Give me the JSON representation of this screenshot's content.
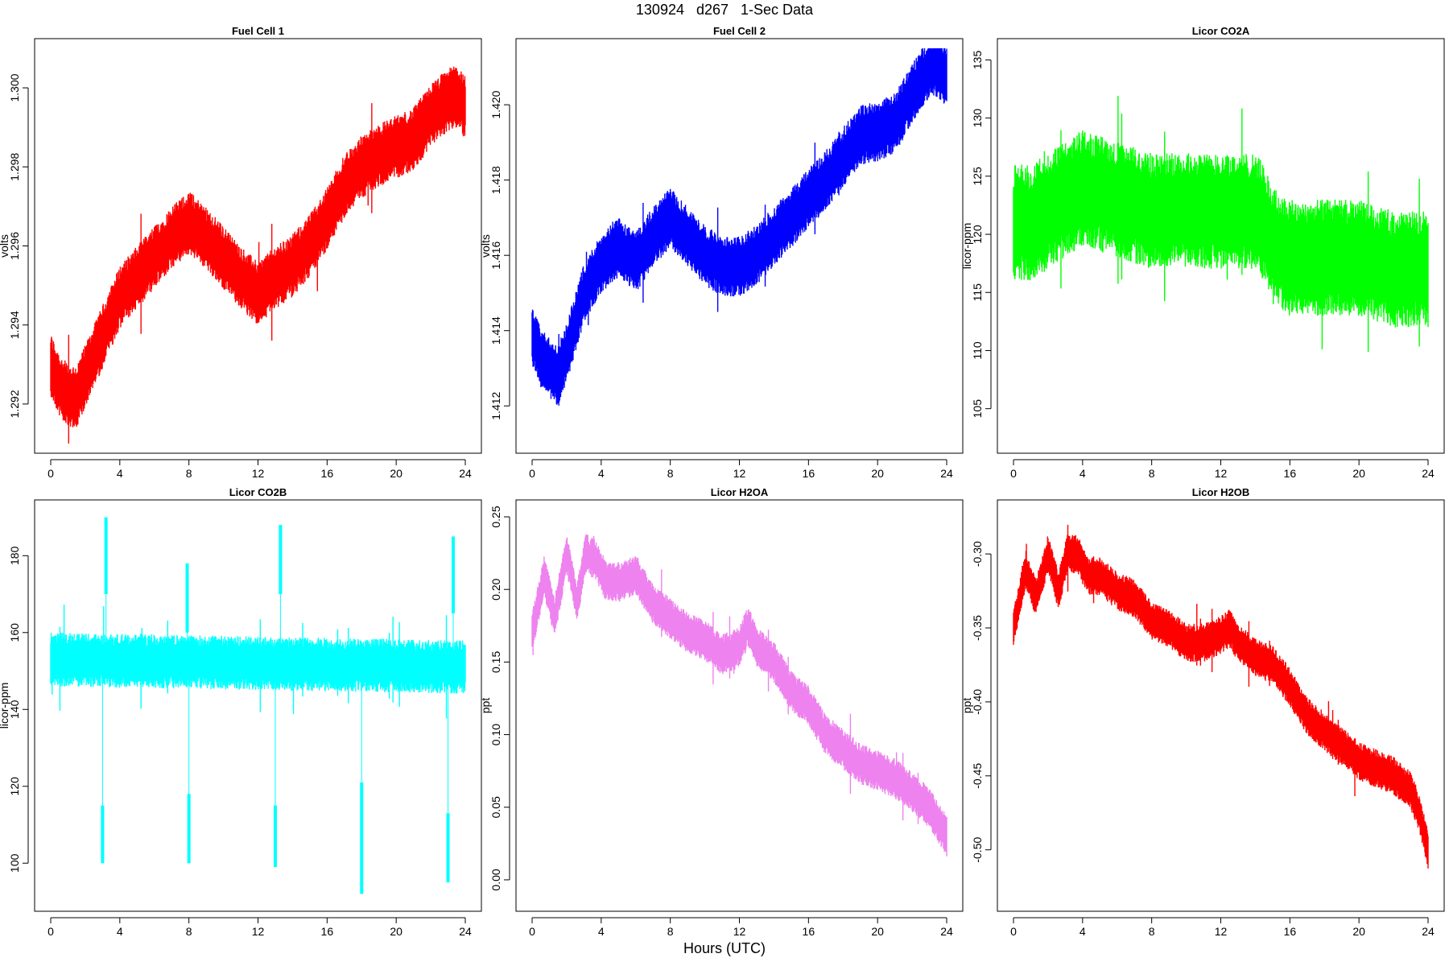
{
  "page": {
    "title": "130924   d267   1-Sec Data",
    "xlabel": "Hours (UTC)"
  },
  "chart_data": [
    {
      "type": "line",
      "title": "Fuel Cell 1",
      "ylabel": "volts",
      "color": "#ff0000",
      "xlim": [
        0,
        24
      ],
      "ylim": [
        1.291,
        1.301
      ],
      "xticks": [
        0,
        4,
        8,
        12,
        16,
        20,
        24
      ],
      "yticks": [
        "1.292",
        "1.294",
        "1.296",
        "1.298",
        "1.300"
      ],
      "band_half_width": 0.0008,
      "series": [
        {
          "x": [
            0,
            0.5,
            1,
            1.5,
            2,
            3,
            4,
            5,
            6,
            7,
            8,
            9,
            10,
            11,
            12,
            13,
            14,
            15,
            16,
            17,
            18,
            19,
            20,
            21,
            22,
            23,
            23.5,
            24
          ],
          "values": [
            1.293,
            1.2925,
            1.2922,
            1.2922,
            1.2927,
            1.2937,
            1.2947,
            1.2952,
            1.2957,
            1.2962,
            1.2966,
            1.2962,
            1.2957,
            1.2952,
            1.2948,
            1.2952,
            1.2955,
            1.296,
            1.2967,
            1.2975,
            1.298,
            1.2983,
            1.2985,
            1.2987,
            1.2993,
            1.2997,
            1.2998,
            1.2995
          ]
        }
      ]
    },
    {
      "type": "line",
      "title": "Fuel Cell 2",
      "ylabel": "volts",
      "color": "#0000ff",
      "xlim": [
        0,
        24
      ],
      "ylim": [
        1.411,
        1.4215
      ],
      "xticks": [
        0,
        4,
        8,
        12,
        16,
        20,
        24
      ],
      "yticks": [
        "1.412",
        "1.414",
        "1.416",
        "1.418",
        "1.420"
      ],
      "band_half_width": 0.0008,
      "series": [
        {
          "x": [
            0,
            0.5,
            1,
            1.5,
            2,
            3,
            4,
            5,
            6,
            7,
            8,
            9,
            10,
            11,
            12,
            13,
            14,
            15,
            16,
            17,
            18,
            19,
            20,
            21,
            22,
            23,
            23.5,
            24
          ],
          "values": [
            1.4138,
            1.4133,
            1.413,
            1.4128,
            1.4134,
            1.415,
            1.4158,
            1.4162,
            1.4158,
            1.4165,
            1.417,
            1.4165,
            1.416,
            1.4157,
            1.4157,
            1.416,
            1.4165,
            1.417,
            1.4175,
            1.418,
            1.4186,
            1.4192,
            1.4193,
            1.4195,
            1.4203,
            1.421,
            1.421,
            1.4207
          ]
        }
      ]
    },
    {
      "type": "line",
      "title": "Licor CO2A",
      "ylabel": "licor-ppm",
      "color": "#00ff00",
      "xlim": [
        0,
        24
      ],
      "ylim": [
        102,
        136
      ],
      "xticks": [
        0,
        4,
        8,
        12,
        16,
        20,
        24
      ],
      "yticks": [
        "105",
        "110",
        "115",
        "120",
        "125",
        "130",
        "135"
      ],
      "band_half_width": 5,
      "series": [
        {
          "x": [
            0,
            1,
            2,
            3,
            4,
            6,
            8,
            10,
            12,
            14,
            14.5,
            15,
            16,
            18,
            20,
            22,
            24
          ],
          "values": [
            121,
            121,
            122,
            123,
            124,
            123,
            122,
            122,
            122,
            122,
            121,
            119,
            118,
            118,
            118,
            117,
            117
          ]
        }
      ]
    },
    {
      "type": "line",
      "title": "Licor CO2B",
      "ylabel": "licor-ppm",
      "color": "#00ffff",
      "xlim": [
        0,
        24
      ],
      "ylim": [
        90,
        192
      ],
      "xticks": [
        0,
        4,
        8,
        12,
        16,
        20,
        24
      ],
      "yticks": [
        "100",
        "120",
        "140",
        "160",
        "180"
      ],
      "band_half_width": 7,
      "series": [
        {
          "x": [
            0,
            24
          ],
          "values": [
            153,
            151
          ]
        }
      ],
      "spikes": [
        {
          "x": 3.0,
          "low": 100,
          "high": 115
        },
        {
          "x": 3.2,
          "low": 170,
          "high": 190
        },
        {
          "x": 8.0,
          "low": 100,
          "high": 118
        },
        {
          "x": 7.9,
          "low": 160,
          "high": 178
        },
        {
          "x": 13.0,
          "low": 99,
          "high": 115
        },
        {
          "x": 13.3,
          "low": 170,
          "high": 188
        },
        {
          "x": 18.0,
          "low": 92,
          "high": 121
        },
        {
          "x": 23.0,
          "low": 95,
          "high": 113
        },
        {
          "x": 23.3,
          "low": 165,
          "high": 185
        }
      ]
    },
    {
      "type": "line",
      "title": "Licor H2OA",
      "ylabel": "ppt",
      "color": "#ee82ee",
      "xlim": [
        0,
        24
      ],
      "ylim": [
        -0.015,
        0.255
      ],
      "xticks": [
        0,
        4,
        8,
        12,
        16,
        20,
        24
      ],
      "yticks": [
        "0.00",
        "0.05",
        "0.10",
        "0.15",
        "0.20",
        "0.25"
      ],
      "band_half_width": 0.014,
      "series": [
        {
          "x": [
            0,
            0.7,
            1.3,
            2.0,
            2.6,
            3.1,
            3.7,
            4.3,
            5.0,
            6.0,
            7.0,
            8.0,
            9.0,
            10.0,
            11.0,
            12.0,
            12.5,
            13.0,
            14.0,
            15.0,
            16.0,
            17.0,
            18.0,
            19.0,
            20.0,
            21.0,
            22.0,
            23.0,
            23.5,
            24.0
          ],
          "values": [
            0.17,
            0.21,
            0.18,
            0.225,
            0.19,
            0.225,
            0.22,
            0.205,
            0.205,
            0.21,
            0.19,
            0.18,
            0.17,
            0.165,
            0.155,
            0.16,
            0.175,
            0.16,
            0.15,
            0.13,
            0.12,
            0.1,
            0.09,
            0.08,
            0.075,
            0.07,
            0.06,
            0.05,
            0.04,
            0.03
          ]
        }
      ]
    },
    {
      "type": "line",
      "title": "Licor H2OB",
      "ylabel": "ppt",
      "color": "#ff0000",
      "xlim": [
        0,
        24
      ],
      "ylim": [
        -0.535,
        -0.27
      ],
      "xticks": [
        0,
        4,
        8,
        12,
        16,
        20,
        24
      ],
      "yticks": [
        "-0.50",
        "-0.45",
        "-0.40",
        "-0.35",
        "-0.30"
      ],
      "band_half_width": 0.013,
      "series": [
        {
          "x": [
            0,
            0.7,
            1.3,
            2.0,
            2.6,
            3.1,
            3.7,
            4.3,
            5.0,
            6.0,
            7.0,
            8.0,
            9.0,
            10.0,
            11.0,
            12.0,
            12.5,
            13.0,
            14.0,
            15.0,
            16.0,
            17.0,
            18.0,
            19.0,
            20.0,
            21.0,
            22.0,
            23.0,
            23.5,
            24.0
          ],
          "values": [
            -0.35,
            -0.31,
            -0.33,
            -0.3,
            -0.325,
            -0.3,
            -0.3,
            -0.315,
            -0.315,
            -0.325,
            -0.33,
            -0.345,
            -0.35,
            -0.36,
            -0.36,
            -0.355,
            -0.35,
            -0.36,
            -0.37,
            -0.375,
            -0.39,
            -0.41,
            -0.42,
            -0.43,
            -0.44,
            -0.445,
            -0.45,
            -0.46,
            -0.475,
            -0.5
          ]
        }
      ]
    }
  ]
}
